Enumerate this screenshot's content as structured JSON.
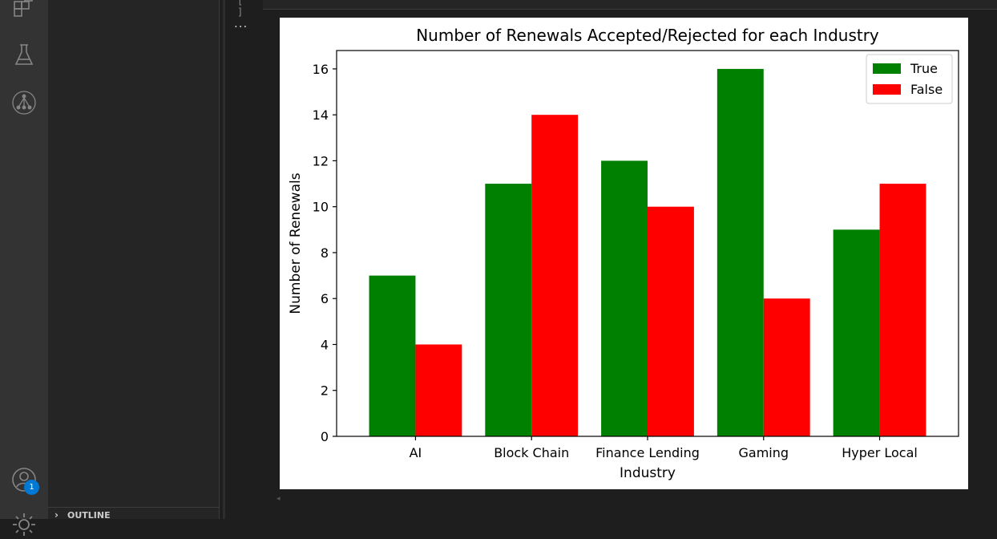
{
  "activity_bar": {
    "icons": [
      "extensions-icon",
      "testing-flask-icon",
      "source-graph-icon",
      "accounts-icon",
      "manage-gear-icon"
    ],
    "accounts_badge": "1"
  },
  "sidebar": {
    "outline_label": "OUTLINE",
    "outline_chevron": "›"
  },
  "cell": {
    "prompt": "[ ]",
    "output_ellipsis": "..."
  },
  "colors": {
    "true_series": "#008000",
    "false_series": "#ff0000"
  },
  "chart_data": {
    "type": "bar",
    "title": "Number of Renewals Accepted/Rejected for each Industry",
    "xlabel": "Industry",
    "ylabel": "Number of Renewals",
    "categories": [
      "AI",
      "Block Chain",
      "Finance Lending",
      "Gaming",
      "Hyper Local"
    ],
    "series": [
      {
        "name": "True",
        "color": "#008000",
        "values": [
          7,
          11,
          12,
          16,
          9
        ]
      },
      {
        "name": "False",
        "color": "#ff0000",
        "values": [
          4,
          14,
          10,
          6,
          11
        ]
      }
    ],
    "ylim": [
      0,
      16.8
    ],
    "yticks": [
      0,
      2,
      4,
      6,
      8,
      10,
      12,
      14,
      16
    ],
    "grid": false,
    "legend_position": "top-right"
  }
}
